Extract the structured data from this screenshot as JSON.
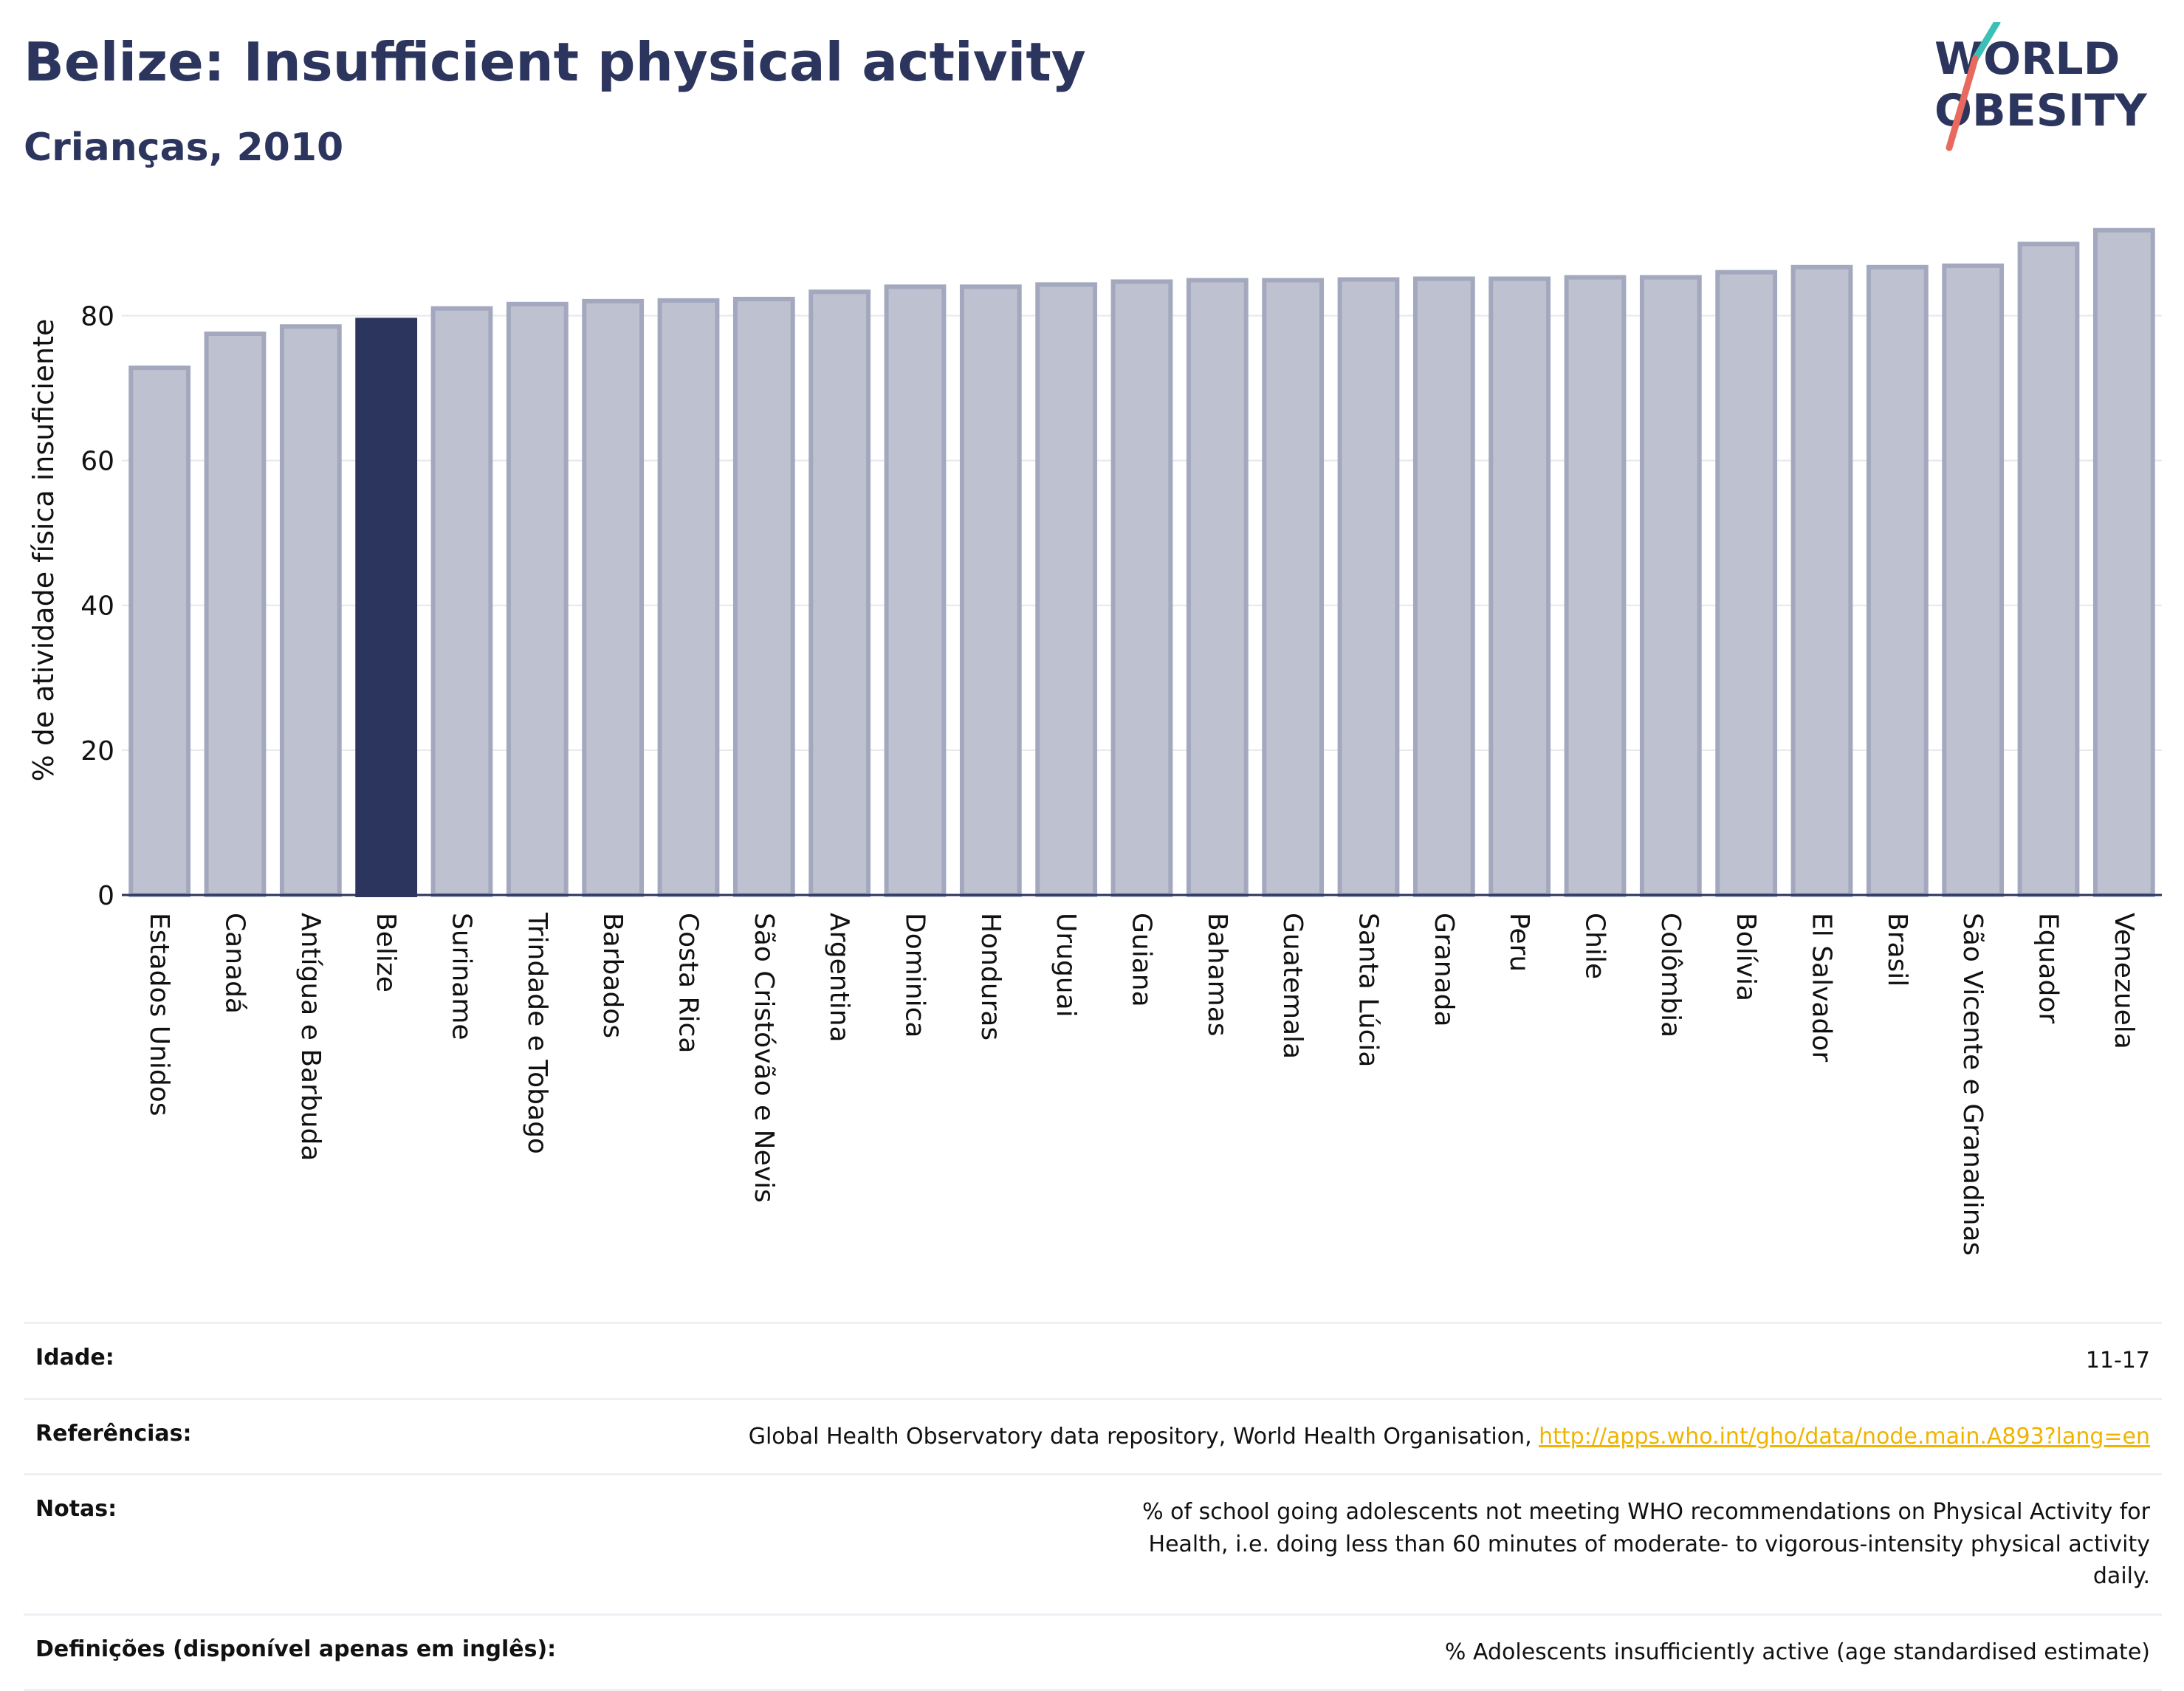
{
  "title": "Belize: Insufficient physical activity",
  "subtitle": "Crianças, 2010",
  "logo": {
    "line1": "WORLD",
    "line2": "OBESITY"
  },
  "colors": {
    "highlight": "#2c355d",
    "bar_fill": "#bec1cf",
    "bar_stroke": "#a3a8be",
    "title": "#2c355d",
    "link": "#f0b400",
    "logo_slash_teal": "#3cbfb4",
    "logo_slash_red": "#e8695d"
  },
  "chart_data": {
    "type": "bar",
    "ylabel": "% de atividade física insuficiente",
    "xlabel": "",
    "ylim": [
      0,
      93
    ],
    "yticks": [
      0,
      20,
      40,
      60,
      80
    ],
    "grid": true,
    "highlight_category": "Belize",
    "categories": [
      "Estados Unidos",
      "Canadá",
      "Antígua e Barbuda",
      "Belize",
      "Suriname",
      "Trindade e Tobago",
      "Barbados",
      "Costa Rica",
      "São Cristóvão e Nevis",
      "Argentina",
      "Dominica",
      "Honduras",
      "Uruguai",
      "Guiana",
      "Bahamas",
      "Guatemala",
      "Santa Lúcia",
      "Granada",
      "Peru",
      "Chile",
      "Colômbia",
      "Bolívia",
      "El Salvador",
      "Brasil",
      "São Vicente e Granadinas",
      "Equador",
      "Venezuela"
    ],
    "values": [
      72.8,
      77.5,
      78.5,
      79.4,
      81.0,
      81.6,
      82.0,
      82.1,
      82.3,
      83.3,
      84.0,
      84.0,
      84.3,
      84.7,
      84.9,
      84.9,
      85.0,
      85.1,
      85.1,
      85.3,
      85.3,
      86.0,
      86.7,
      86.7,
      86.9,
      89.9,
      91.8
    ]
  },
  "table": {
    "rows": [
      {
        "label": "Idade:",
        "value": "11-17"
      },
      {
        "label": "Referências:",
        "value": "Global Health Observatory data repository, World Health Organisation, ",
        "link": "http://apps.who.int/gho/data/node.main.A893?lang=en"
      },
      {
        "label": "Notas:",
        "value": "% of school going adolescents not meeting WHO recommendations on Physical Activity for Health, i.e. doing less than 60 minutes of moderate- to vigorous-intensity physical activity daily."
      },
      {
        "label": "Definições (disponível apenas em inglês):",
        "value": "% Adolescents insufficiently active (age standardised estimate)"
      }
    ]
  }
}
